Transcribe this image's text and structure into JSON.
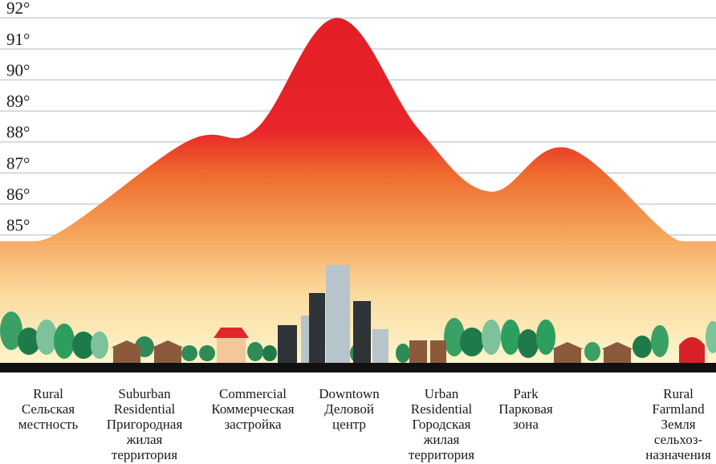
{
  "chart_data": {
    "type": "area",
    "categories": [
      "Rural\nСельская\nместность",
      "Suburban\nResidential\nПригородная\nжилая\nтерритория",
      "Commercial\nКоммерческая\nзастройка",
      "Downtown\nДеловой\nцентр",
      "Urban\nResidential\nГородская\nжилая\nтерритория",
      "Park\nПарковая\nзона",
      null,
      "Rural\nFarmland\nЗемля\nсельхоз-\nназначения"
    ],
    "values": [
      84.8,
      88.0,
      88.4,
      92.0,
      88.4,
      86.4,
      87.8,
      84.8
    ],
    "ylim": [
      80.8,
      92.5
    ],
    "yticks": [
      {
        "value": 85,
        "label": "85°"
      },
      {
        "value": 86,
        "label": "86°"
      },
      {
        "value": 87,
        "label": "87°"
      },
      {
        "value": 88,
        "label": "88°"
      },
      {
        "value": 89,
        "label": "89°"
      },
      {
        "value": 90,
        "label": "90°"
      },
      {
        "value": 91,
        "label": "91°"
      },
      {
        "value": 92,
        "label": "92°"
      }
    ],
    "grid": true
  }
}
